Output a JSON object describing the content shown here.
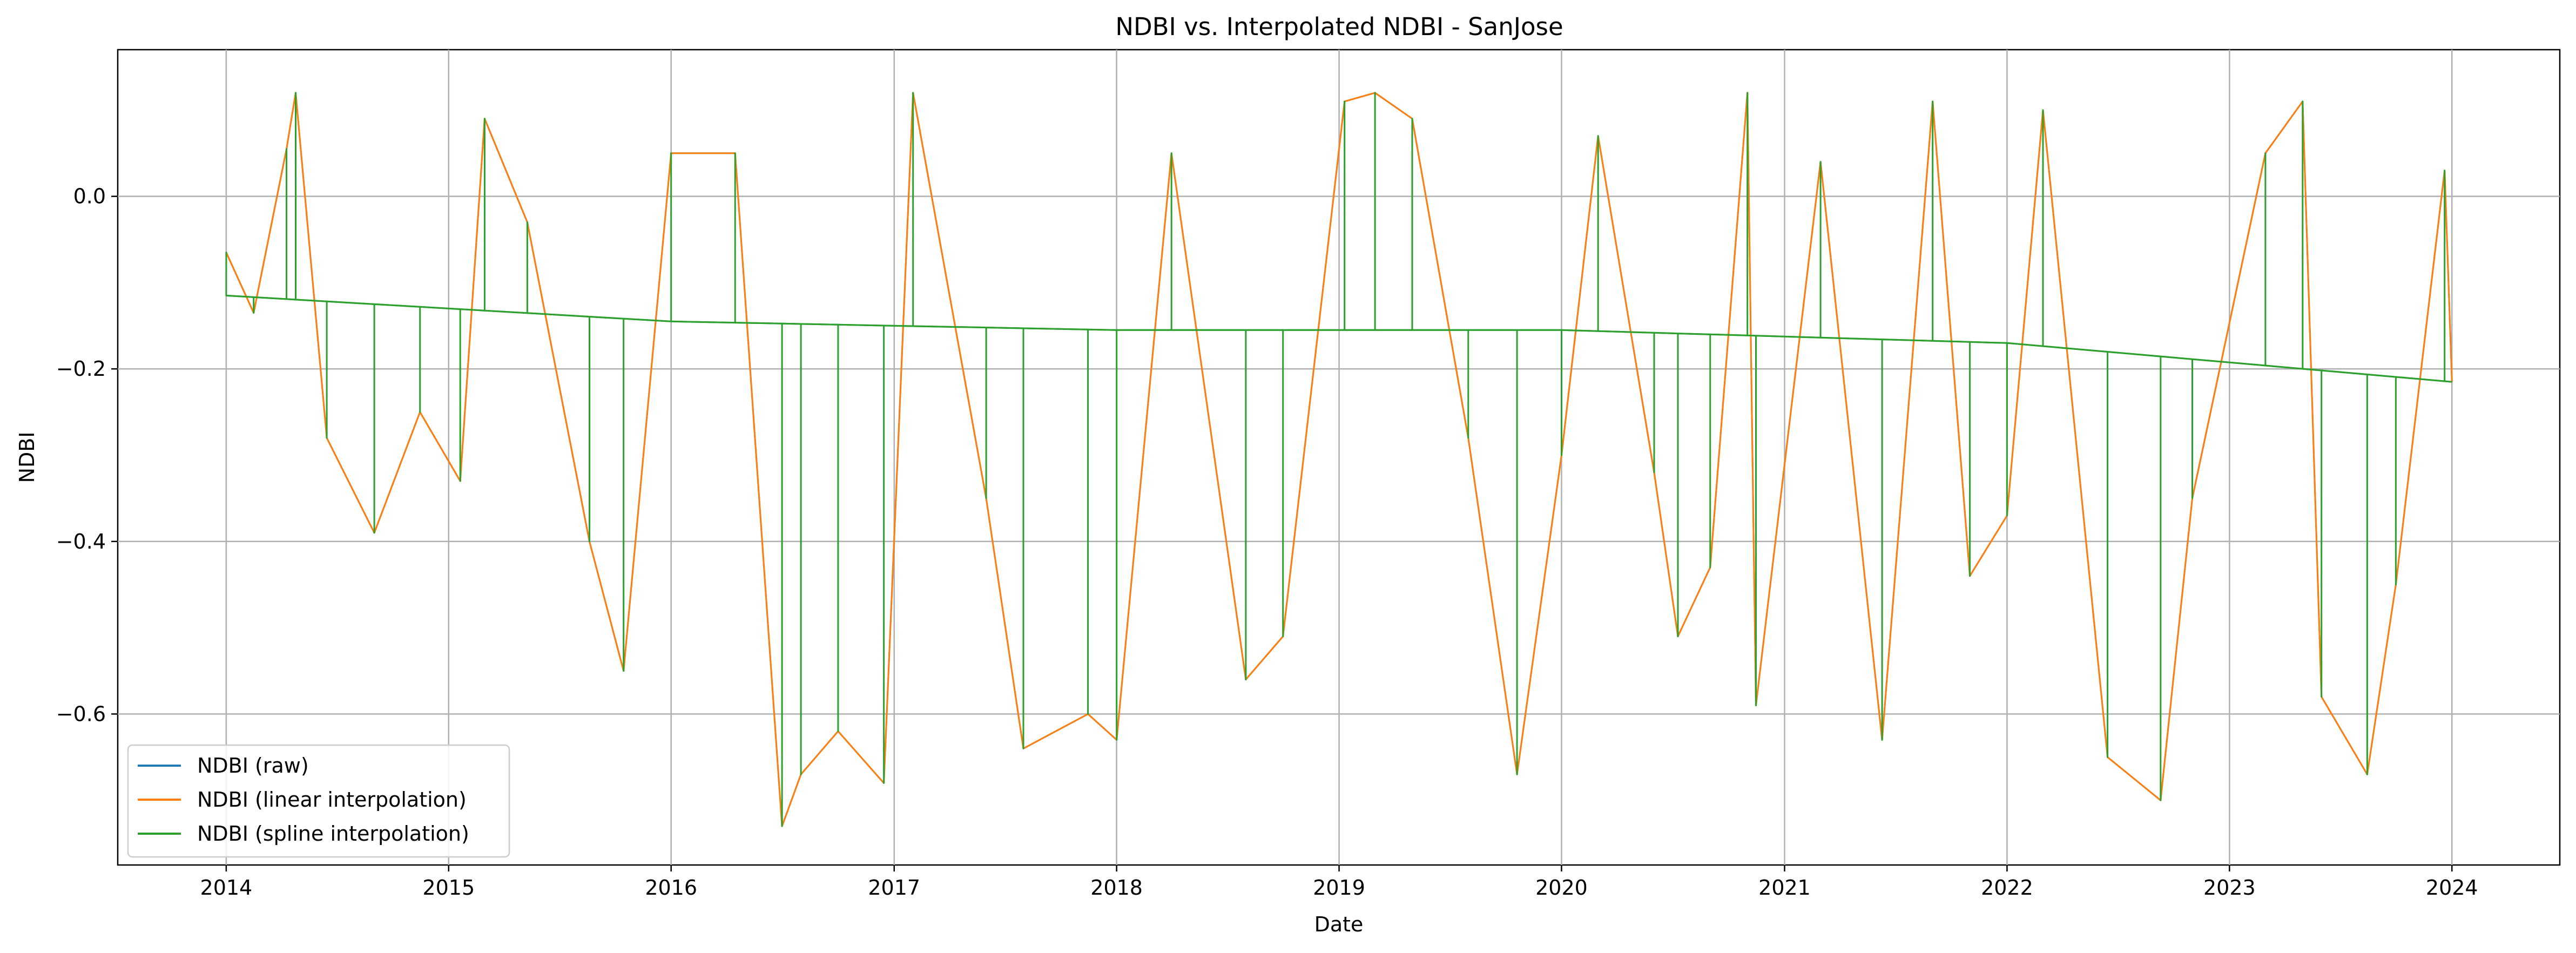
{
  "chart_data": {
    "type": "line",
    "title": "NDBI vs. Interpolated NDBI - SanJose",
    "xlabel": "Date",
    "ylabel": "NDBI",
    "xlim": [
      "2013-07-07",
      "2024-06-26"
    ],
    "ylim": [
      -0.775,
      0.17
    ],
    "x_ticks": [
      "2014",
      "2015",
      "2016",
      "2017",
      "2018",
      "2019",
      "2020",
      "2021",
      "2022",
      "2023",
      "2024"
    ],
    "y_ticks": [
      0.0,
      -0.2,
      -0.4,
      -0.6
    ],
    "y_tick_labels": [
      "0.0",
      "−0.2",
      "−0.4",
      "−0.6"
    ],
    "grid": true,
    "legend_location": "lower left",
    "series": [
      {
        "name": "NDBI (raw)",
        "color": "#1f77b4",
        "points": [
          [
            "2014-01-01",
            -0.065
          ],
          [
            "2014-02-15",
            -0.135
          ],
          [
            "2014-04-10",
            0.055
          ],
          [
            "2014-04-25",
            0.12
          ],
          [
            "2014-06-15",
            -0.28
          ],
          [
            "2014-09-01",
            -0.39
          ],
          [
            "2014-11-15",
            -0.25
          ],
          [
            "2015-01-20",
            -0.33
          ],
          [
            "2015-03-01",
            0.09
          ],
          [
            "2015-05-10",
            -0.03
          ],
          [
            "2015-08-20",
            -0.4
          ],
          [
            "2015-10-15",
            -0.55
          ],
          [
            "2016-01-01",
            0.05
          ],
          [
            "2016-04-15",
            0.05
          ],
          [
            "2016-07-01",
            -0.73
          ],
          [
            "2016-08-01",
            -0.67
          ],
          [
            "2016-10-01",
            -0.62
          ],
          [
            "2016-12-15",
            -0.68
          ],
          [
            "2017-02-01",
            0.12
          ],
          [
            "2017-06-01",
            -0.35
          ],
          [
            "2017-08-01",
            -0.64
          ],
          [
            "2017-11-15",
            -0.6
          ],
          [
            "2018-01-01",
            -0.63
          ],
          [
            "2018-04-01",
            0.05
          ],
          [
            "2018-08-01",
            -0.56
          ],
          [
            "2018-10-01",
            -0.51
          ],
          [
            "2019-01-10",
            0.11
          ],
          [
            "2019-03-01",
            0.12
          ],
          [
            "2019-05-01",
            0.09
          ],
          [
            "2019-08-01",
            -0.28
          ],
          [
            "2019-10-20",
            -0.67
          ],
          [
            "2020-01-01",
            -0.3
          ],
          [
            "2020-03-01",
            0.07
          ],
          [
            "2020-06-01",
            -0.32
          ],
          [
            "2020-07-10",
            -0.51
          ],
          [
            "2020-09-01",
            -0.43
          ],
          [
            "2020-11-01",
            0.12
          ],
          [
            "2020-11-15",
            -0.59
          ],
          [
            "2021-03-01",
            0.04
          ],
          [
            "2021-06-10",
            -0.63
          ],
          [
            "2021-09-01",
            0.11
          ],
          [
            "2021-11-01",
            -0.44
          ],
          [
            "2022-01-01",
            -0.37
          ],
          [
            "2022-03-01",
            0.1
          ],
          [
            "2022-06-15",
            -0.65
          ],
          [
            "2022-09-10",
            -0.7
          ],
          [
            "2022-11-01",
            -0.35
          ],
          [
            "2023-03-01",
            0.05
          ],
          [
            "2023-05-01",
            0.11
          ],
          [
            "2023-06-01",
            -0.58
          ],
          [
            "2023-08-15",
            -0.67
          ],
          [
            "2023-10-01",
            -0.45
          ],
          [
            "2023-12-20",
            0.03
          ],
          [
            "2024-01-01",
            -0.215
          ]
        ]
      },
      {
        "name": "NDBI (linear interpolation)",
        "color": "#ff7f0e",
        "points": [
          [
            "2014-01-01",
            -0.065
          ],
          [
            "2014-02-15",
            -0.135
          ],
          [
            "2014-04-10",
            0.055
          ],
          [
            "2014-04-25",
            0.12
          ],
          [
            "2014-06-15",
            -0.28
          ],
          [
            "2014-09-01",
            -0.39
          ],
          [
            "2014-11-15",
            -0.25
          ],
          [
            "2015-01-20",
            -0.33
          ],
          [
            "2015-03-01",
            0.09
          ],
          [
            "2015-05-10",
            -0.03
          ],
          [
            "2015-08-20",
            -0.4
          ],
          [
            "2015-10-15",
            -0.55
          ],
          [
            "2016-01-01",
            0.05
          ],
          [
            "2016-04-15",
            0.05
          ],
          [
            "2016-07-01",
            -0.73
          ],
          [
            "2016-08-01",
            -0.67
          ],
          [
            "2016-10-01",
            -0.62
          ],
          [
            "2016-12-15",
            -0.68
          ],
          [
            "2017-02-01",
            0.12
          ],
          [
            "2017-06-01",
            -0.35
          ],
          [
            "2017-08-01",
            -0.64
          ],
          [
            "2017-11-15",
            -0.6
          ],
          [
            "2018-01-01",
            -0.63
          ],
          [
            "2018-04-01",
            0.05
          ],
          [
            "2018-08-01",
            -0.56
          ],
          [
            "2018-10-01",
            -0.51
          ],
          [
            "2019-01-10",
            0.11
          ],
          [
            "2019-03-01",
            0.12
          ],
          [
            "2019-05-01",
            0.09
          ],
          [
            "2019-08-01",
            -0.28
          ],
          [
            "2019-10-20",
            -0.67
          ],
          [
            "2020-01-01",
            -0.3
          ],
          [
            "2020-03-01",
            0.07
          ],
          [
            "2020-06-01",
            -0.32
          ],
          [
            "2020-07-10",
            -0.51
          ],
          [
            "2020-09-01",
            -0.43
          ],
          [
            "2020-11-01",
            0.12
          ],
          [
            "2020-11-15",
            -0.59
          ],
          [
            "2021-03-01",
            0.04
          ],
          [
            "2021-06-10",
            -0.63
          ],
          [
            "2021-09-01",
            0.11
          ],
          [
            "2021-11-01",
            -0.44
          ],
          [
            "2022-01-01",
            -0.37
          ],
          [
            "2022-03-01",
            0.1
          ],
          [
            "2022-06-15",
            -0.65
          ],
          [
            "2022-09-10",
            -0.7
          ],
          [
            "2022-11-01",
            -0.35
          ],
          [
            "2023-03-01",
            0.05
          ],
          [
            "2023-05-01",
            0.11
          ],
          [
            "2023-06-01",
            -0.58
          ],
          [
            "2023-08-15",
            -0.67
          ],
          [
            "2023-10-01",
            -0.45
          ],
          [
            "2023-12-20",
            0.03
          ],
          [
            "2024-01-01",
            -0.215
          ]
        ]
      },
      {
        "name": "NDBI (spline interpolation)",
        "color": "#2ca02c",
        "baseline": [
          [
            "2014-01-01",
            -0.115
          ],
          [
            "2016-01-01",
            -0.145
          ],
          [
            "2018-01-01",
            -0.155
          ],
          [
            "2020-01-01",
            -0.155
          ],
          [
            "2022-01-01",
            -0.17
          ],
          [
            "2024-01-01",
            -0.215
          ]
        ],
        "points": [
          [
            "2014-01-01",
            -0.065
          ],
          [
            "2014-02-15",
            -0.135
          ],
          [
            "2014-04-10",
            0.055
          ],
          [
            "2014-04-25",
            0.12
          ],
          [
            "2014-06-15",
            -0.28
          ],
          [
            "2014-09-01",
            -0.39
          ],
          [
            "2014-11-15",
            -0.25
          ],
          [
            "2015-01-20",
            -0.33
          ],
          [
            "2015-03-01",
            0.09
          ],
          [
            "2015-05-10",
            -0.03
          ],
          [
            "2015-08-20",
            -0.4
          ],
          [
            "2015-10-15",
            -0.55
          ],
          [
            "2016-01-01",
            0.05
          ],
          [
            "2016-04-15",
            0.05
          ],
          [
            "2016-07-01",
            -0.73
          ],
          [
            "2016-08-01",
            -0.67
          ],
          [
            "2016-10-01",
            -0.62
          ],
          [
            "2016-12-15",
            -0.68
          ],
          [
            "2017-02-01",
            0.12
          ],
          [
            "2017-06-01",
            -0.35
          ],
          [
            "2017-08-01",
            -0.64
          ],
          [
            "2017-11-15",
            -0.6
          ],
          [
            "2018-01-01",
            -0.63
          ],
          [
            "2018-04-01",
            0.05
          ],
          [
            "2018-08-01",
            -0.56
          ],
          [
            "2018-10-01",
            -0.51
          ],
          [
            "2019-01-10",
            0.11
          ],
          [
            "2019-03-01",
            0.12
          ],
          [
            "2019-05-01",
            0.09
          ],
          [
            "2019-08-01",
            -0.28
          ],
          [
            "2019-10-20",
            -0.67
          ],
          [
            "2020-01-01",
            -0.3
          ],
          [
            "2020-03-01",
            0.07
          ],
          [
            "2020-06-01",
            -0.32
          ],
          [
            "2020-07-10",
            -0.51
          ],
          [
            "2020-09-01",
            -0.43
          ],
          [
            "2020-11-01",
            0.12
          ],
          [
            "2020-11-15",
            -0.59
          ],
          [
            "2021-03-01",
            0.04
          ],
          [
            "2021-06-10",
            -0.63
          ],
          [
            "2021-09-01",
            0.11
          ],
          [
            "2021-11-01",
            -0.44
          ],
          [
            "2022-01-01",
            -0.37
          ],
          [
            "2022-03-01",
            0.1
          ],
          [
            "2022-06-15",
            -0.65
          ],
          [
            "2022-09-10",
            -0.7
          ],
          [
            "2022-11-01",
            -0.35
          ],
          [
            "2023-03-01",
            0.05
          ],
          [
            "2023-05-01",
            0.11
          ],
          [
            "2023-06-01",
            -0.58
          ],
          [
            "2023-08-15",
            -0.67
          ],
          [
            "2023-10-01",
            -0.45
          ],
          [
            "2023-12-20",
            0.03
          ],
          [
            "2024-01-01",
            -0.215
          ]
        ]
      }
    ]
  }
}
